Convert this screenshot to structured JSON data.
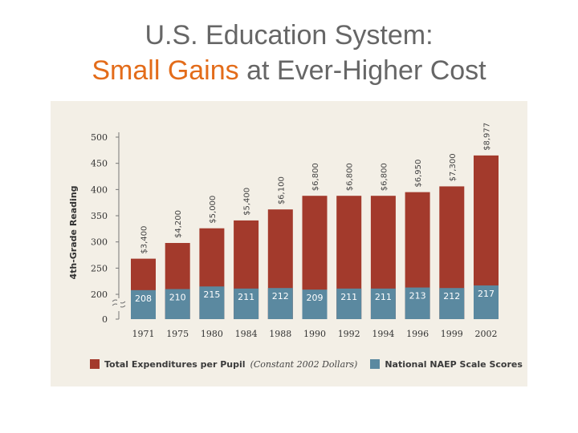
{
  "title": {
    "line1": "U.S. Education System:",
    "accent": "Small Gains",
    "rest": " at Ever-Higher Cost"
  },
  "colors": {
    "expenditure": "#a33a2c",
    "naep": "#5b89a0",
    "title_accent": "#e36c1a",
    "title_gray": "#666666",
    "panel": "#f3efe6"
  },
  "chart_data": {
    "type": "bar",
    "ylabel": "4th-Grade Reading",
    "yticks": [
      "500",
      "450",
      "400",
      "350",
      "300",
      "250",
      "200",
      "0"
    ],
    "categories": [
      "1971",
      "1975",
      "1980",
      "1984",
      "1988",
      "1990",
      "1992",
      "1994",
      "1996",
      "1999",
      "2002"
    ],
    "series": [
      {
        "name": "Total Expenditures per Pupil",
        "values": [
          3400,
          4200,
          5000,
          5400,
          6100,
          6800,
          6800,
          6800,
          6950,
          7300,
          8977
        ],
        "labels": [
          "$3,400",
          "$4,200",
          "$5,000",
          "$5,400",
          "$6,100",
          "$6,800",
          "$6,800",
          "$6,800",
          "$6,950",
          "$7,300",
          "$8,977"
        ],
        "chart_heights": [
          268,
          298,
          326,
          341,
          362,
          388,
          388,
          388,
          395,
          406,
          465
        ]
      },
      {
        "name": "National NAEP Scale Scores",
        "values": [
          208,
          210,
          215,
          211,
          212,
          209,
          211,
          211,
          213,
          212,
          217
        ],
        "labels": [
          "208",
          "210",
          "215",
          "211",
          "212",
          "209",
          "211",
          "211",
          "213",
          "212",
          "217"
        ]
      }
    ],
    "legend": {
      "expenditure": "Total Expenditures per Pupil",
      "expenditure_note": "(Constant 2002 Dollars)",
      "naep": "National NAEP Scale Scores",
      "position": "bottom"
    },
    "ylim": [
      0,
      500
    ],
    "axis_break": true,
    "grid": false
  }
}
